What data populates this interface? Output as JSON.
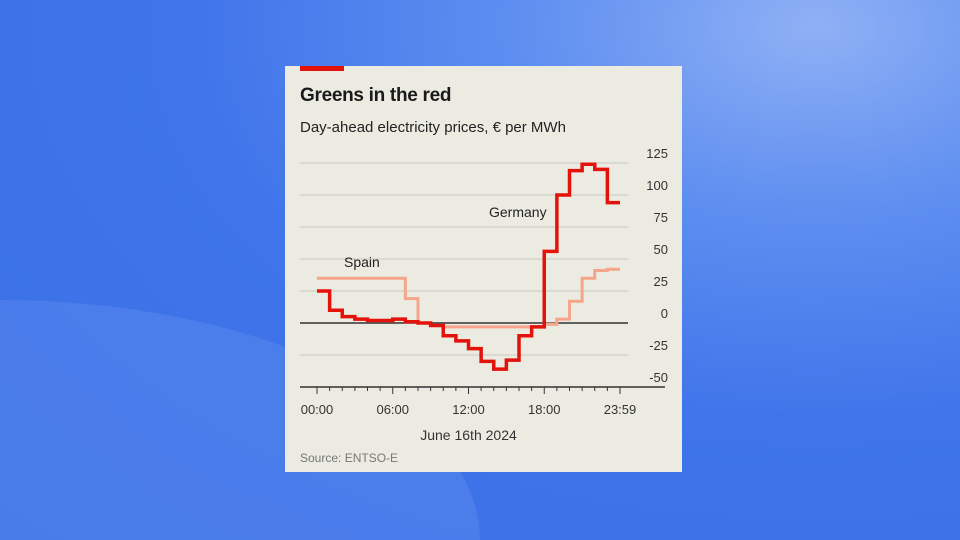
{
  "chart_data": {
    "type": "line",
    "title": "Greens in the red",
    "subtitle": "Day-ahead electricity prices, € per MWh",
    "xlabel": "June 16th 2024",
    "source": "Source: ENTSO-E",
    "x_tick_labels": [
      "00:00",
      "06:00",
      "12:00",
      "18:00",
      "23:59"
    ],
    "y_tick_labels": [
      "125",
      "100",
      "75",
      "50",
      "25",
      "0",
      "-25",
      "-50"
    ],
    "ylim": [
      -50,
      125
    ],
    "xlim_hours": [
      0,
      24
    ],
    "grid": true,
    "step": true,
    "x_hours": [
      0,
      1,
      2,
      3,
      4,
      5,
      6,
      7,
      8,
      9,
      10,
      11,
      12,
      13,
      14,
      15,
      16,
      17,
      18,
      19,
      20,
      21,
      22,
      23
    ],
    "series": [
      {
        "name": "Germany",
        "color": "#e3120b",
        "values": [
          25,
          10,
          5,
          3,
          2,
          2,
          3,
          1,
          0,
          -2,
          -10,
          -14,
          -20,
          -30,
          -36,
          -29,
          -10,
          -3,
          56,
          100,
          119,
          124,
          120,
          94
        ]
      },
      {
        "name": "Spain",
        "color": "#f4a58a",
        "values": [
          35,
          35,
          35,
          35,
          35,
          35,
          35,
          19,
          0,
          -2,
          -3,
          -3,
          -3,
          -3,
          -3,
          -3,
          -3,
          -3,
          -1,
          3,
          17,
          35,
          41,
          42
        ]
      }
    ]
  }
}
